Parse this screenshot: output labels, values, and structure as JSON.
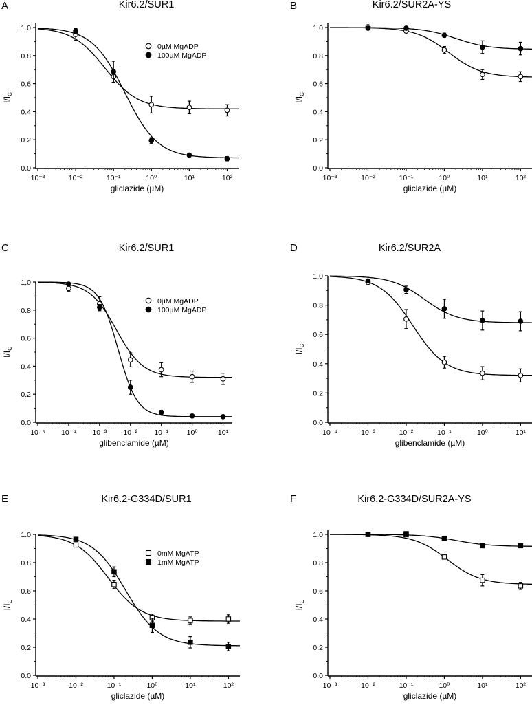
{
  "figure": {
    "ylabel_main": "I/I",
    "ylabel_sub": "C"
  },
  "chart_data": [
    {
      "id": "A",
      "type": "scatter",
      "title": "Kir6.2/SUR1",
      "xlabel": "gliclazide (µM)",
      "ylabel": "I/IC",
      "xscale": "log",
      "xlim_exp": [
        -3,
        2.3
      ],
      "xticks_exp": [
        -3,
        -2,
        -1,
        0,
        1,
        2
      ],
      "ylim": [
        0,
        1.05
      ],
      "yticks": [
        "0.0",
        "0.2",
        "0.4",
        "0.6",
        "0.8",
        "1.0"
      ],
      "legend": {
        "placement": "top-right",
        "entries": [
          {
            "label": "0µM MgADP",
            "marker": "open-circle"
          },
          {
            "label": "100µM MgADP",
            "marker": "filled-circle"
          }
        ]
      },
      "series": [
        {
          "name": "0µM MgADP",
          "marker": "open-circle",
          "x": [
            0.01,
            0.1,
            1,
            10,
            100
          ],
          "y": [
            0.95,
            0.65,
            0.45,
            0.43,
            0.41
          ],
          "err": [
            0.04,
            0.04,
            0.06,
            0.045,
            0.04
          ],
          "fit": {
            "ic50": 0.06,
            "hill": 1.0,
            "plateau": 0.42
          }
        },
        {
          "name": "100µM MgADP",
          "marker": "filled-circle",
          "x": [
            0.01,
            0.1,
            1,
            10,
            100
          ],
          "y": [
            0.975,
            0.685,
            0.195,
            0.09,
            0.065
          ],
          "err": [
            0.02,
            0.075,
            0.02,
            0.01,
            0.015
          ],
          "fit": {
            "ic50": 0.2,
            "hill": 1.0,
            "plateau": 0.07
          }
        }
      ]
    },
    {
      "id": "B",
      "type": "scatter",
      "title": "Kir6.2/SUR2A-YS",
      "xlabel": "gliclazide (µM)",
      "ylabel": "I/IC",
      "xscale": "log",
      "xlim_exp": [
        -3,
        2.3
      ],
      "xticks_exp": [
        -3,
        -2,
        -1,
        0,
        1,
        2
      ],
      "ylim": [
        0,
        1.05
      ],
      "yticks": [
        "0.0",
        "0.2",
        "0.4",
        "0.6",
        "0.8",
        "1.0"
      ],
      "legend": null,
      "series": [
        {
          "name": "open",
          "marker": "open-circle",
          "x": [
            0.01,
            0.1,
            1,
            10,
            100
          ],
          "y": [
            1.005,
            0.975,
            0.84,
            0.665,
            0.65
          ],
          "err": [
            0.01,
            0.01,
            0.025,
            0.035,
            0.035
          ],
          "fit": {
            "ic50": 1.3,
            "hill": 1.0,
            "plateau": 0.645
          }
        },
        {
          "name": "filled",
          "marker": "filled-circle",
          "x": [
            0.01,
            0.1,
            1,
            10,
            100
          ],
          "y": [
            0.995,
            0.995,
            0.945,
            0.86,
            0.85
          ],
          "err": [
            0.005,
            0.005,
            0.015,
            0.045,
            0.045
          ],
          "fit": {
            "ic50": 2.0,
            "hill": 1.0,
            "plateau": 0.845
          }
        }
      ]
    },
    {
      "id": "C",
      "type": "scatter",
      "title": "Kir6.2/SUR1",
      "xlabel": "glibenclamide (µM)",
      "ylabel": "I/IC",
      "xscale": "log",
      "xlim_exp": [
        -5,
        1.3
      ],
      "xticks_exp": [
        -5,
        -4,
        -3,
        -2,
        -1,
        0,
        1
      ],
      "ylim": [
        0,
        1.0
      ],
      "yticks": [
        "0.0",
        "0.2",
        "0.4",
        "0.6",
        "0.8",
        "1.0"
      ],
      "legend": {
        "placement": "top-right",
        "entries": [
          {
            "label": "0µM MgADP",
            "marker": "open-circle"
          },
          {
            "label": "100µM MgADP",
            "marker": "filled-circle"
          }
        ]
      },
      "series": [
        {
          "name": "0µM MgADP",
          "marker": "open-circle",
          "x": [
            0.0001,
            0.001,
            0.01,
            0.1,
            1,
            10
          ],
          "y": [
            0.955,
            0.845,
            0.445,
            0.375,
            0.325,
            0.31
          ],
          "err": [
            0.02,
            0.05,
            0.05,
            0.05,
            0.04,
            0.04
          ],
          "fit": {
            "ic50": 0.0035,
            "hill": 1.0,
            "plateau": 0.32
          }
        },
        {
          "name": "100µM MgADP",
          "marker": "filled-circle",
          "x": [
            0.0001,
            0.001,
            0.01,
            0.1,
            1,
            10
          ],
          "y": [
            0.985,
            0.82,
            0.25,
            0.07,
            0.045,
            0.04
          ],
          "err": [
            0.01,
            0.02,
            0.05,
            0.015,
            0.005,
            0.005
          ],
          "fit": {
            "ic50": 0.004,
            "hill": 1.4,
            "plateau": 0.04
          }
        }
      ]
    },
    {
      "id": "D",
      "type": "scatter",
      "title": "Kir6.2/SUR2A",
      "xlabel": "glibenclamide (µM)",
      "ylabel": "I/IC",
      "xscale": "log",
      "xlim_exp": [
        -4,
        1.3
      ],
      "xticks_exp": [
        -4,
        -3,
        -2,
        -1,
        0,
        1
      ],
      "ylim": [
        0,
        1.0
      ],
      "yticks": [
        "0.0",
        "0.2",
        "0.4",
        "0.6",
        "0.8",
        "1.0"
      ],
      "legend": null,
      "series": [
        {
          "name": "open",
          "marker": "open-circle",
          "x": [
            0.001,
            0.01,
            0.1,
            1,
            10
          ],
          "y": [
            0.955,
            0.705,
            0.41,
            0.335,
            0.32
          ],
          "err": [
            0.01,
            0.065,
            0.04,
            0.045,
            0.045
          ],
          "fit": {
            "ic50": 0.015,
            "hill": 1.0,
            "plateau": 0.32
          }
        },
        {
          "name": "filled",
          "marker": "filled-circle",
          "x": [
            0.001,
            0.01,
            0.1,
            1,
            10
          ],
          "y": [
            0.965,
            0.905,
            0.775,
            0.695,
            0.69
          ],
          "err": [
            0.01,
            0.025,
            0.065,
            0.065,
            0.065
          ],
          "fit": {
            "ic50": 0.03,
            "hill": 1.0,
            "plateau": 0.68
          }
        }
      ]
    },
    {
      "id": "E",
      "type": "scatter",
      "title": "Kir6.2-G334D/SUR1",
      "xlabel": "gliclazide (µM)",
      "ylabel": "I/IC",
      "xscale": "log",
      "xlim_exp": [
        -3,
        2.3
      ],
      "xticks_exp": [
        -3,
        -2,
        -1,
        0,
        1,
        2
      ],
      "ylim": [
        0,
        1.0
      ],
      "yticks": [
        "0.0",
        "0.2",
        "0.4",
        "0.6",
        "0.8",
        "1.0"
      ],
      "legend": {
        "placement": "top-right",
        "entries": [
          {
            "label": "0mM MgATP",
            "marker": "open-square"
          },
          {
            "label": "1mM MgATP",
            "marker": "filled-square"
          }
        ]
      },
      "series": [
        {
          "name": "0mM MgATP",
          "marker": "open-square",
          "x": [
            0.01,
            0.1,
            1,
            10,
            100
          ],
          "y": [
            0.925,
            0.645,
            0.41,
            0.39,
            0.4
          ],
          "err": [
            0.01,
            0.03,
            0.025,
            0.025,
            0.03
          ],
          "fit": {
            "ic50": 0.07,
            "hill": 1.0,
            "plateau": 0.385
          }
        },
        {
          "name": "1mM MgATP",
          "marker": "filled-square",
          "x": [
            0.01,
            0.1,
            1,
            10,
            100
          ],
          "y": [
            0.965,
            0.735,
            0.355,
            0.235,
            0.205
          ],
          "err": [
            0.01,
            0.035,
            0.05,
            0.04,
            0.03
          ],
          "fit": {
            "ic50": 0.2,
            "hill": 1.0,
            "plateau": 0.21
          }
        }
      ]
    },
    {
      "id": "F",
      "type": "scatter",
      "title": "Kir6.2-G334D/SUR2A-YS",
      "xlabel": "gliclazide (µM)",
      "ylabel": "I/IC",
      "xscale": "log",
      "xlim_exp": [
        -3,
        2.3
      ],
      "xticks_exp": [
        -3,
        -2,
        -1,
        0,
        1,
        2
      ],
      "ylim": [
        0,
        1.05
      ],
      "yticks": [
        "0.0",
        "0.2",
        "0.4",
        "0.6",
        "0.8",
        "1.0"
      ],
      "legend": null,
      "series": [
        {
          "name": "open",
          "marker": "open-square",
          "x": [
            0.01,
            0.1,
            1,
            10,
            100
          ],
          "y": [
            1.0,
            0.998,
            0.84,
            0.675,
            0.635
          ],
          "err": [
            0.005,
            0.01,
            0.01,
            0.04,
            0.025
          ],
          "fit": {
            "ic50": 1.2,
            "hill": 1.0,
            "plateau": 0.645
          }
        },
        {
          "name": "filled",
          "marker": "filled-square",
          "x": [
            0.01,
            0.1,
            1,
            10,
            100
          ],
          "y": [
            1.0,
            1.005,
            0.972,
            0.92,
            0.92
          ],
          "err": [
            0.005,
            0.01,
            0.008,
            0.008,
            0.008
          ],
          "fit": {
            "ic50": 2.0,
            "hill": 1.0,
            "plateau": 0.915
          }
        }
      ]
    }
  ]
}
